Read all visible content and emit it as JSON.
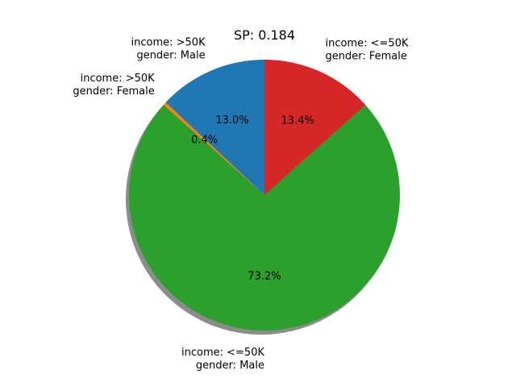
{
  "chart_data": {
    "type": "pie",
    "title": "SP: 0.184",
    "shadow": true,
    "start_angle_deg": 90,
    "direction": "counterclockwise",
    "slices": [
      {
        "label_lines": [
          "income: >50K",
          "gender: Male"
        ],
        "value": 13.0,
        "pct_label": "13.0%",
        "color": "#1f77b4"
      },
      {
        "label_lines": [
          "income: >50K",
          "gender: Female"
        ],
        "value": 0.4,
        "pct_label": "0.4%",
        "color": "#ff7f0e"
      },
      {
        "label_lines": [
          "income: <=50K",
          "gender: Male"
        ],
        "value": 73.2,
        "pct_label": "73.2%",
        "color": "#2ca02c"
      },
      {
        "label_lines": [
          "income: <=50K",
          "gender: Female"
        ],
        "value": 13.4,
        "pct_label": "13.4%",
        "color": "#d62728"
      }
    ]
  }
}
